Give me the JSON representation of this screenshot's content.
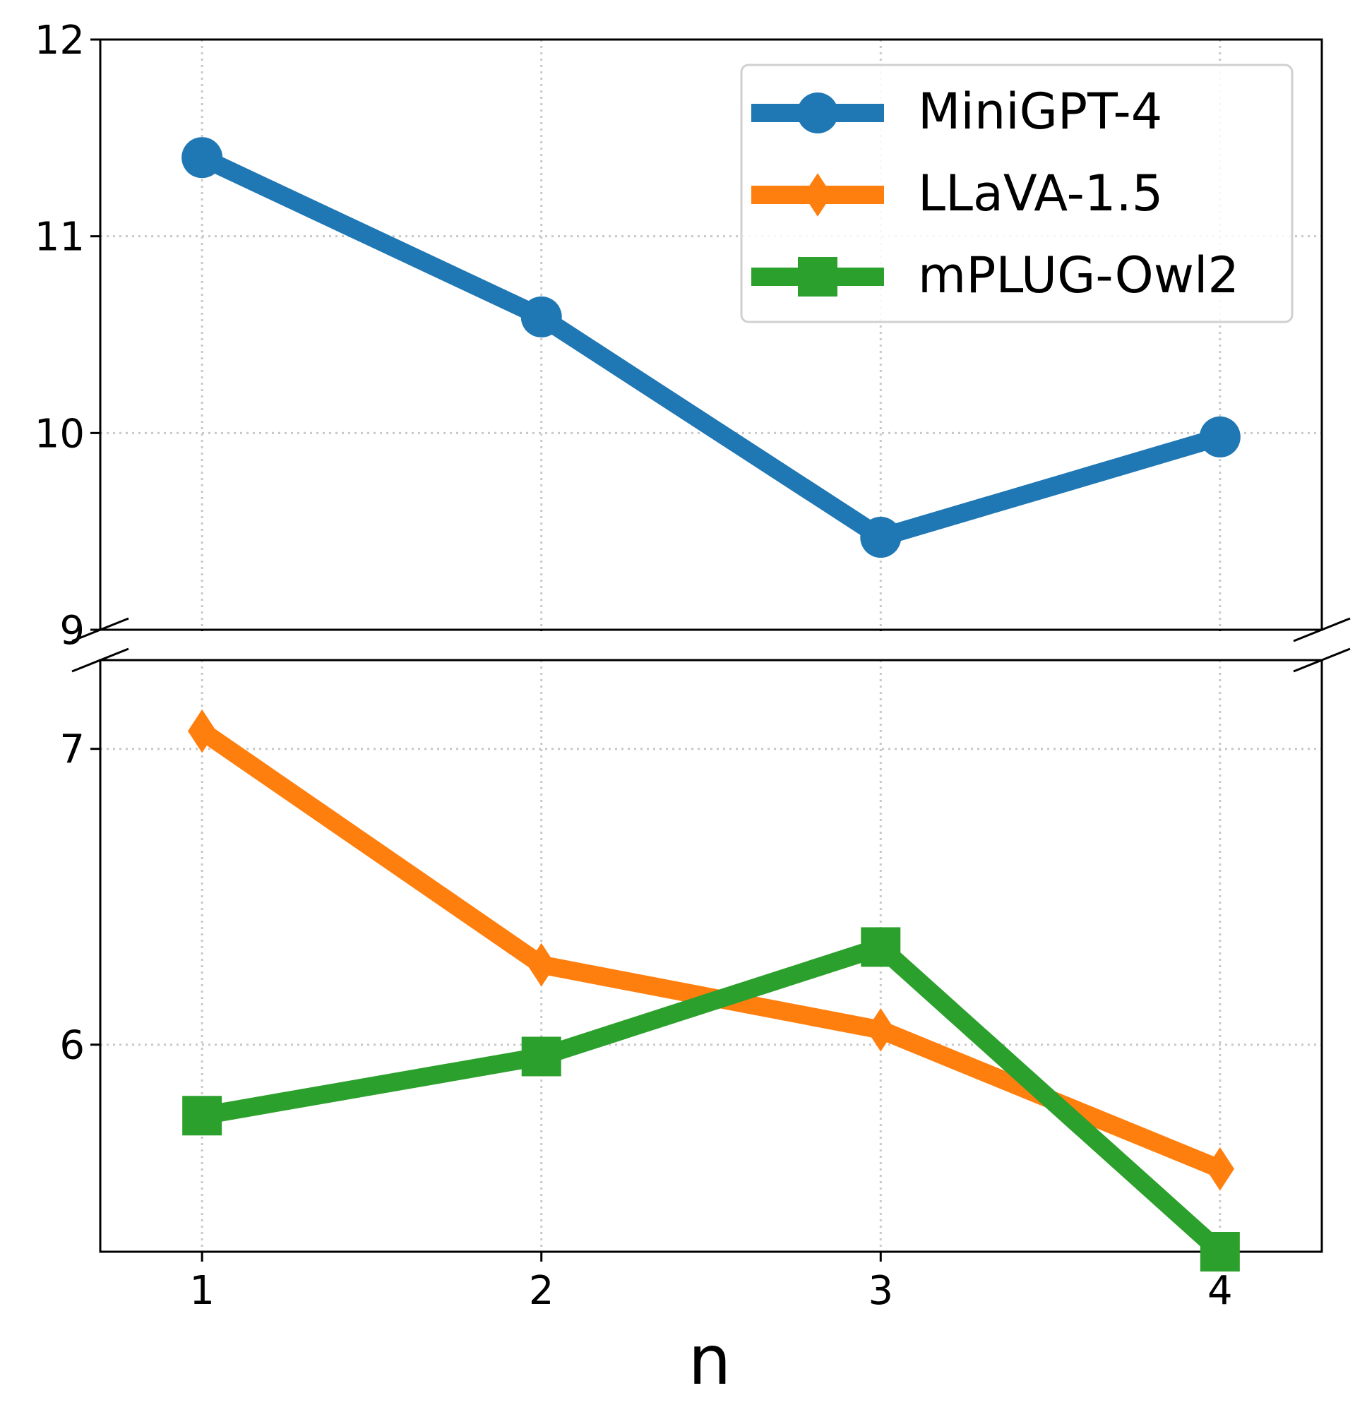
{
  "chart_data": {
    "type": "line",
    "xlabel": "n",
    "ylabel": "",
    "title": "",
    "x": [
      1,
      2,
      3,
      4
    ],
    "x_ticks": [
      "1",
      "2",
      "3",
      "4"
    ],
    "xlim": [
      0.7,
      4.3
    ],
    "broken_y_axis": true,
    "panels": [
      {
        "name": "top",
        "ylim": [
          9,
          12
        ],
        "yticks": [
          "9",
          "10",
          "11",
          "12"
        ],
        "series": [
          "MiniGPT-4"
        ]
      },
      {
        "name": "bottom",
        "ylim": [
          5.3,
          7.3
        ],
        "yticks": [
          "6",
          "7"
        ],
        "series": [
          "LLaVA-1.5",
          "mPLUG-Owl2"
        ]
      }
    ],
    "series": [
      {
        "name": "MiniGPT-4",
        "color": "#1f77b4",
        "marker": "circle",
        "values": [
          11.4,
          10.59,
          9.47,
          9.98
        ]
      },
      {
        "name": "LLaVA-1.5",
        "color": "#ff7f0e",
        "marker": "diamond",
        "values": [
          7.06,
          6.27,
          6.05,
          5.58
        ]
      },
      {
        "name": "mPLUG-Owl2",
        "color": "#2ca02c",
        "marker": "square",
        "values": [
          5.76,
          5.96,
          6.33,
          5.3
        ]
      }
    ],
    "grid": true,
    "legend_position": "top-right"
  }
}
